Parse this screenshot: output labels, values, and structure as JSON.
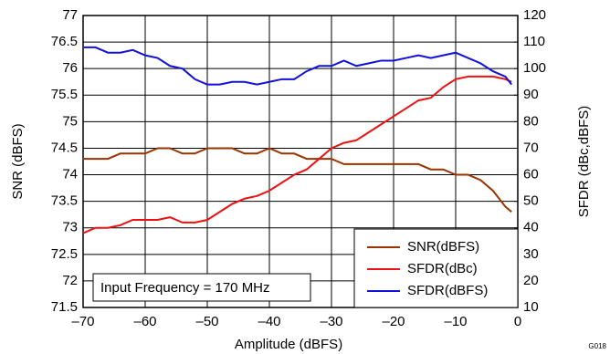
{
  "chart_data": {
    "type": "line",
    "xlabel": "Amplitude (dBFS)",
    "ylabel": "SNR (dBFS)",
    "y2label": "SFDR (dBc,dBFS)",
    "annotation": "Input Frequency = 170 MHz",
    "figure_id": "G018",
    "x": [
      -70,
      -68,
      -66,
      -64,
      -62,
      -60,
      -58,
      -56,
      -54,
      -52,
      -50,
      -48,
      -46,
      -44,
      -42,
      -40,
      -38,
      -36,
      -34,
      -32,
      -30,
      -28,
      -26,
      -24,
      -22,
      -20,
      -18,
      -16,
      -14,
      -12,
      -10,
      -8,
      -6,
      -4,
      -2,
      -1
    ],
    "series": [
      {
        "name": "SNR(dBFS)",
        "color": "#993300",
        "values": [
          74.3,
          74.3,
          74.3,
          74.4,
          74.4,
          74.4,
          74.5,
          74.5,
          74.4,
          74.4,
          74.5,
          74.5,
          74.5,
          74.4,
          74.4,
          74.5,
          74.4,
          74.4,
          74.3,
          74.3,
          74.3,
          74.2,
          74.2,
          74.2,
          74.2,
          74.2,
          74.2,
          74.2,
          74.1,
          74.1,
          74.0,
          74.0,
          73.9,
          73.7,
          73.4,
          73.3
        ]
      },
      {
        "name": "SFDR(dBc)",
        "color": "#ee1111",
        "axis": "y2",
        "values": [
          38,
          40,
          40,
          41,
          43,
          43,
          43,
          44,
          42,
          42,
          43,
          46,
          49,
          51,
          52,
          54,
          57,
          60,
          62,
          66,
          70,
          72,
          73,
          76,
          79,
          82,
          85,
          88,
          89,
          93,
          96,
          97,
          97,
          97,
          96,
          95
        ]
      },
      {
        "name": "SFDR(dBFS)",
        "color": "#1111dd",
        "axis": "y2",
        "values": [
          108,
          108,
          106,
          106,
          107,
          105,
          104,
          101,
          100,
          96,
          94,
          94,
          95,
          95,
          94,
          95,
          96,
          96,
          99,
          101,
          101,
          103,
          101,
          102,
          103,
          103,
          104,
          105,
          104,
          105,
          106,
          104,
          102,
          99,
          97,
          94
        ]
      }
    ],
    "xlim": [
      -70,
      0
    ],
    "xticks": [
      {
        "value": -70,
        "label": "–70"
      },
      {
        "value": -60,
        "label": "–60"
      },
      {
        "value": -50,
        "label": "–50"
      },
      {
        "value": -40,
        "label": "–40"
      },
      {
        "value": -30,
        "label": "–30"
      },
      {
        "value": -20,
        "label": "–20"
      },
      {
        "value": -10,
        "label": "–10"
      },
      0
    ],
    "ylim": [
      71.5,
      77
    ],
    "yticks": [
      71.5,
      72,
      72.5,
      73,
      73.5,
      74,
      74.5,
      75,
      75.5,
      76,
      76.5,
      77
    ],
    "y2lim": [
      10,
      120
    ],
    "y2ticks": [
      10,
      20,
      30,
      40,
      50,
      60,
      70,
      80,
      90,
      100,
      110,
      120
    ],
    "grid": true,
    "legend": "lower right"
  }
}
